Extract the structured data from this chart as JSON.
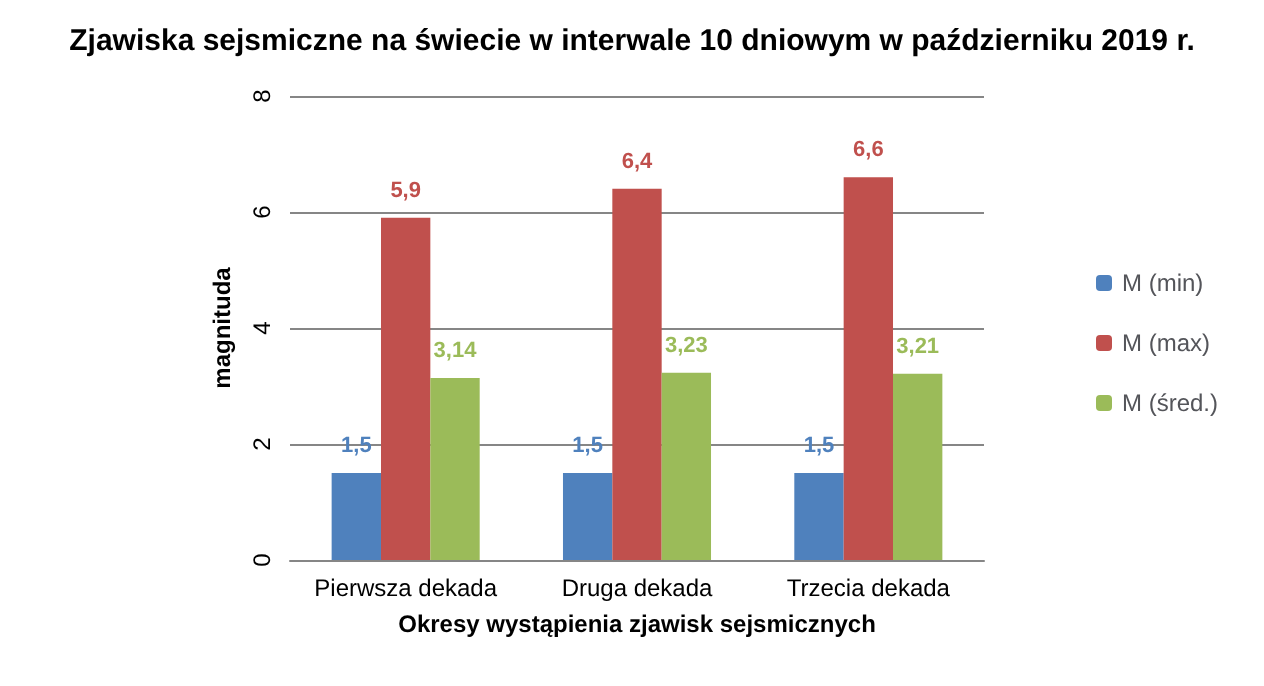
{
  "chart_data": {
    "type": "bar",
    "title": "Zjawiska sejsmiczne na świecie w interwale 10 dniowym w październiku 2019 r.",
    "xlabel": "Okresy wystąpienia zjawisk sejsmicznych",
    "ylabel": "magnituda",
    "categories": [
      "Pierwsza dekada",
      "Druga dekada",
      "Trzecia dekada"
    ],
    "series": [
      {
        "name": "M (min)",
        "color": "#4f81bd",
        "values": [
          1.5,
          1.5,
          1.5
        ],
        "value_labels": [
          "1,5",
          "1,5",
          "1,5"
        ]
      },
      {
        "name": "M (max)",
        "color": "#c0504d",
        "values": [
          5.9,
          6.4,
          6.6
        ],
        "value_labels": [
          "5,9",
          "6,4",
          "6,6"
        ]
      },
      {
        "name": "M (śred.)",
        "color": "#9bbb59",
        "values": [
          3.14,
          3.23,
          3.21
        ],
        "value_labels": [
          "3,14",
          "3,23",
          "3,21"
        ]
      }
    ],
    "ylim": [
      0,
      8
    ],
    "yticks": [
      0,
      2,
      4,
      6,
      8
    ],
    "grid": "y",
    "legend": "right"
  }
}
